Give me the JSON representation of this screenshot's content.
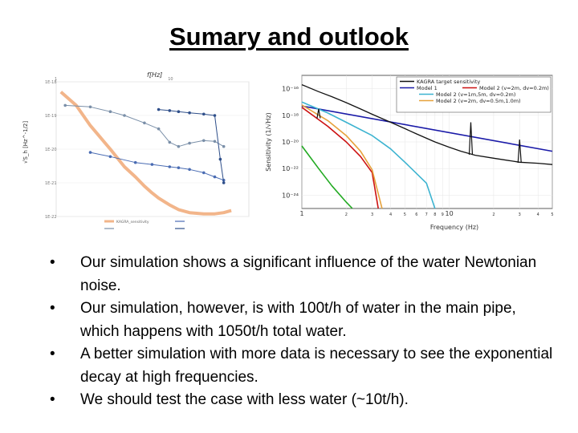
{
  "slide": {
    "title": "Sumary and outlook",
    "bullets": [
      "Our simulation shows a significant influence of the water Newtonian noise.",
      "Our simulation, however, is with 100t/h of water in the main pipe, which happens with 1050t/h total water.",
      "A better simulation with more data is necessary to see the exponential decay at high frequencies.",
      "We should test the case with less water (~10t/h)."
    ],
    "bullet_char": "•"
  },
  "chart_data": [
    {
      "type": "line",
      "title": "",
      "xlabel": "f[Hz]",
      "ylabel": "√S_h [Hz^-1/2]",
      "x_scale": "log",
      "y_scale": "log",
      "xlim": [
        1,
        50
      ],
      "ylim": [
        1e-22,
        1e-18
      ],
      "x_tick_labels": [
        "1",
        "10"
      ],
      "y_tick_labels": [
        "1E-18",
        "1E-19",
        "1E-20",
        "1E-21",
        "1E-22"
      ],
      "legend_placement": "bottom",
      "series": [
        {
          "name": "KAGRA_sensitivity",
          "color": "#f2b58a",
          "x": [
            1.1,
            1.5,
            2,
            3,
            4,
            5,
            6,
            7,
            8,
            10,
            12,
            15,
            20,
            25,
            30,
            35
          ],
          "y": [
            5e-19,
            2e-19,
            5e-20,
            1e-20,
            3e-21,
            1.5e-21,
            8e-22,
            5e-22,
            3.5e-22,
            2.2e-22,
            1.6e-22,
            1.3e-22,
            1.2e-22,
            1.2e-22,
            1.3e-22,
            1.5e-22
          ]
        },
        {
          "name": "",
          "color": "#7a8fa8",
          "x": [
            1.2,
            2,
            3,
            4,
            6,
            8,
            10,
            12,
            15,
            20,
            25,
            30
          ],
          "y": [
            2e-19,
            1.8e-19,
            1.3e-19,
            1e-19,
            6e-20,
            4e-20,
            1.6e-20,
            1.2e-20,
            1.5e-20,
            1.8e-20,
            1.7e-20,
            1.2e-20
          ]
        },
        {
          "name": "",
          "color": "#4a6cb3",
          "x": [
            2,
            3,
            5,
            7,
            10,
            12,
            15,
            20,
            25,
            30
          ],
          "y": [
            8e-21,
            6e-21,
            4e-21,
            3.5e-21,
            3e-21,
            2.8e-21,
            2.5e-21,
            2e-21,
            1.5e-21,
            1.2e-21
          ]
        },
        {
          "name": "",
          "color": "#2f4f8a",
          "x": [
            8,
            10,
            12,
            15,
            20,
            25,
            28,
            30
          ],
          "y": [
            1.5e-19,
            1.4e-19,
            1.3e-19,
            1.2e-19,
            1.1e-19,
            1e-19,
            5e-21,
            1e-21
          ]
        }
      ]
    },
    {
      "type": "line",
      "title": "",
      "xlabel": "Frequency (Hz)",
      "ylabel": "Sensitivity (1/√Hz)",
      "x_scale": "log",
      "y_scale": "log",
      "xlim": [
        1,
        50
      ],
      "ylim": [
        1e-25,
        1e-15
      ],
      "grid": true,
      "legend_placement": "top-right",
      "x_tick_labels": [
        "1",
        "2",
        "3",
        "4",
        "5",
        "6",
        "7",
        "8",
        "9",
        "10",
        "2",
        "3",
        "4",
        "5"
      ],
      "y_tick_labels": [
        "10⁻¹⁶",
        "10⁻¹⁸",
        "10⁻²⁰",
        "10⁻²²",
        "10⁻²⁴"
      ],
      "series": [
        {
          "name": "KAGRA target sensitivity",
          "color": "#111111",
          "x": [
            1,
            1.3,
            1.6,
            2,
            2.5,
            3,
            4,
            5,
            6,
            8,
            10,
            12,
            15,
            20,
            30,
            40,
            50
          ],
          "y": [
            2e-16,
            6e-17,
            2.5e-17,
            9e-18,
            3e-18,
            1.2e-18,
            3e-19,
            1e-19,
            4e-20,
            1e-20,
            4e-21,
            2e-21,
            1e-21,
            6e-22,
            3e-22,
            2.5e-22,
            2e-22
          ]
        },
        {
          "name": "Model 1",
          "color": "#1a1aa8",
          "x": [
            1,
            50
          ],
          "y": [
            5e-18,
            2e-21
          ]
        },
        {
          "name": "Model 2 (v=2m, dv=0.2m)",
          "color": "#cc1111",
          "x": [
            1,
            1.5,
            2,
            2.5,
            3,
            3.3
          ],
          "y": [
            4e-18,
            1.5e-19,
            1e-20,
            8e-22,
            5e-23,
            1e-25
          ]
        },
        {
          "name": "Model 2 (v=1m,5m, dv=0.2m)",
          "color": "#3cb3d0",
          "x": [
            1,
            1.5,
            2,
            3,
            4,
            5,
            7,
            8
          ],
          "y": [
            1e-17,
            1.5e-18,
            3e-19,
            3e-20,
            3e-21,
            3e-22,
            8e-24,
            1e-25
          ]
        },
        {
          "name": "Model 2 (v=2m, dv=0.5m,1.0m)",
          "color": "#e6a23c",
          "x": [
            1,
            1.5,
            2,
            2.5,
            3,
            3.5
          ],
          "y": [
            6e-18,
            4e-19,
            3e-20,
            2e-21,
            8e-23,
            1e-25
          ]
        },
        {
          "name": "",
          "color": "#22aa22",
          "x": [
            1,
            1.3,
            1.6,
            2,
            2.2
          ],
          "y": [
            5e-21,
            1e-22,
            5e-24,
            3e-25,
            1e-25
          ]
        }
      ]
    }
  ]
}
